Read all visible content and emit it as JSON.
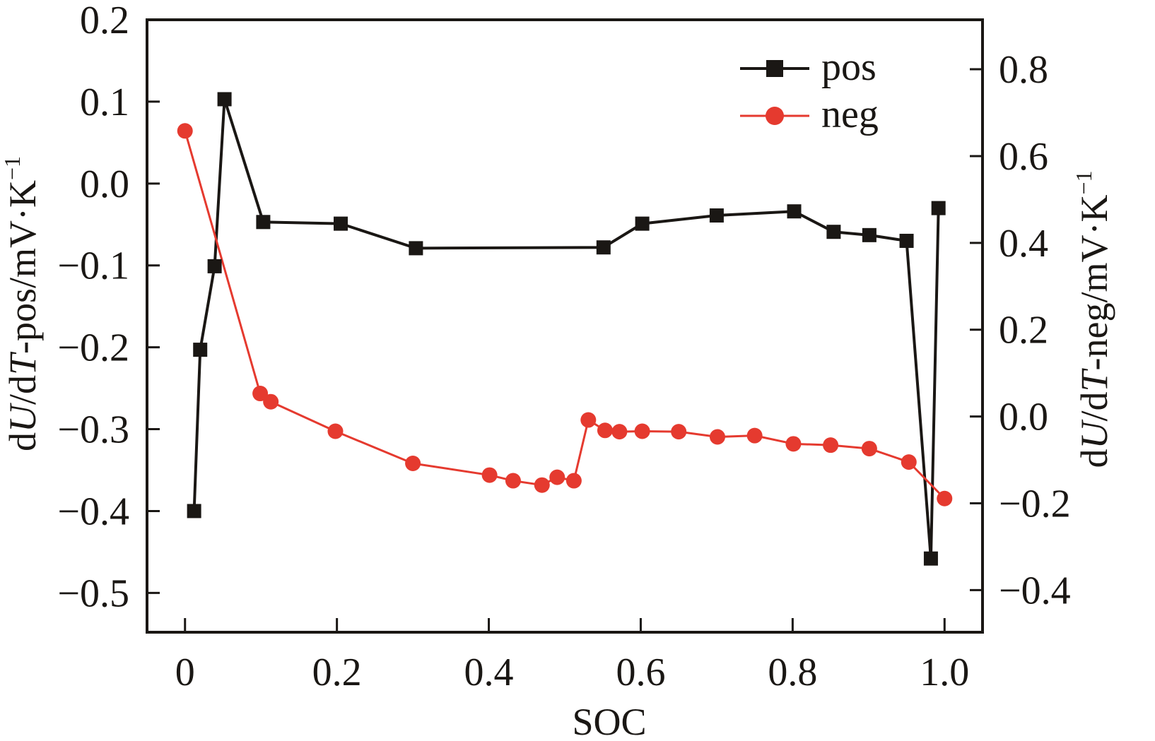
{
  "chart_data": {
    "type": "line",
    "title": "",
    "xlabel": "SOC",
    "ylabel_left": {
      "prefix": "d",
      "italic1": "U",
      "mid": "/d",
      "italic2": "T",
      "suffix": "-pos/mV·K",
      "sup": "−1"
    },
    "ylabel_right": {
      "prefix": "d",
      "italic1": "U",
      "mid": "/d",
      "italic2": "T",
      "suffix": "-neg/mV·K",
      "sup": "−1"
    },
    "xlim": [
      -0.05,
      1.05
    ],
    "ylim_left": [
      -0.548,
      0.2
    ],
    "ylim_right": [
      -0.497,
      0.914
    ],
    "x_ticks": [
      0,
      0.2,
      0.4,
      0.6,
      0.8,
      1.0
    ],
    "x_tick_labels": [
      "0",
      "0.2",
      "0.4",
      "0.6",
      "0.8",
      "1.0"
    ],
    "y_left_ticks": [
      0.2,
      0.1,
      0.0,
      -0.1,
      -0.2,
      -0.3,
      -0.4,
      -0.5
    ],
    "y_left_tick_labels": [
      "0.2",
      "0.1",
      "0.0",
      "−0.1",
      "−0.2",
      "−0.3",
      "−0.4",
      "−0.5"
    ],
    "y_right_ticks": [
      0.8,
      0.6,
      0.4,
      0.2,
      0.0,
      -0.2,
      -0.4
    ],
    "y_right_tick_labels": [
      "0.8",
      "0.6",
      "0.4",
      "0.2",
      "0.0",
      "−0.2",
      "−0.4"
    ],
    "grid": false,
    "legend_position": "top-right",
    "series": [
      {
        "name": "pos",
        "axis": "left",
        "color": "#1a1714",
        "marker": "square",
        "x": [
          0.012,
          0.02,
          0.039,
          0.052,
          0.103,
          0.205,
          0.304,
          0.551,
          0.602,
          0.7,
          0.802,
          0.854,
          0.901,
          0.95,
          0.982,
          0.992
        ],
        "y": [
          -0.4,
          -0.203,
          -0.101,
          0.103,
          -0.047,
          -0.049,
          -0.079,
          -0.078,
          -0.049,
          -0.039,
          -0.034,
          -0.059,
          -0.063,
          -0.07,
          -0.458,
          -0.03
        ]
      },
      {
        "name": "neg",
        "axis": "right",
        "color": "#e53a2f",
        "marker": "circle",
        "x": [
          0.0,
          0.099,
          0.113,
          0.198,
          0.3,
          0.401,
          0.432,
          0.47,
          0.49,
          0.512,
          0.531,
          0.553,
          0.572,
          0.602,
          0.65,
          0.701,
          0.75,
          0.801,
          0.85,
          0.901,
          0.953,
          1.0
        ],
        "y": [
          0.658,
          0.053,
          0.034,
          -0.034,
          -0.108,
          -0.135,
          -0.148,
          -0.158,
          -0.14,
          -0.148,
          -0.008,
          -0.032,
          -0.035,
          -0.034,
          -0.035,
          -0.047,
          -0.044,
          -0.063,
          -0.066,
          -0.074,
          -0.105,
          -0.189
        ]
      }
    ]
  }
}
